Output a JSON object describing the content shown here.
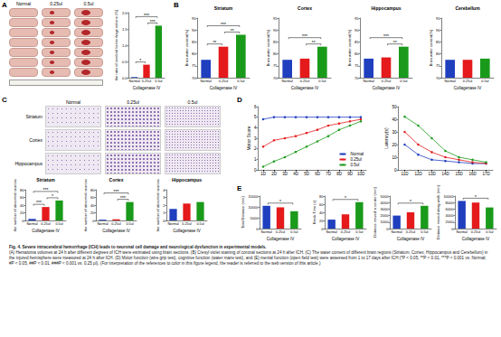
{
  "figure": {
    "panel_labels": [
      "A",
      "B",
      "C",
      "D",
      "E"
    ],
    "panel_A_photo": {
      "columns": [
        "Normal",
        "0.25ul",
        "0.5ul"
      ]
    },
    "panel_C_photo": {
      "columns": [
        "Normal",
        "0.25ul",
        "0.5ul"
      ],
      "rows": [
        "Striatum",
        "Cortex",
        "Hippocampus"
      ]
    },
    "caption": {
      "title": "Fig. 4. Severe intracerebral hemorrhage (ICH) leads to neuronal cell damage and neurological dysfunction in experimental models.",
      "text": "(A) Hematoma volumes at 24 h after different degrees of ICH were estimated using brain sections. (B) Cresyl violet staining of coronal sections at 24 h after ICH. (C) The water content of different brain regions (Striatum, Cortex, Hippocampus and Cerebellum) in the injured hemisphere were measured at 24 h after ICH. (D) Motor function (wire grip test), cognitive function (water maze test), and (E) mental function (open field test) were assessed from 1 to 17 days after ICH (*P < 0.05, **P < 0.01, ***P < 0.001 vs. Normal; #P < 0.05, ##P < 0.01, ###P < 0.001 vs. 0.25 μl). (For interpretation of the references to color in this figure legend, the reader is referred to the web version of this article.)"
    }
  },
  "chart_data": [
    {
      "type": "bar",
      "categories": [
        "Normal",
        "0.25ul",
        "0.5ul"
      ],
      "values": [
        0.02,
        0.4,
        1.6
      ],
      "colors": [
        "#1f3fbf",
        "#e41a1c",
        "#1a9a1a"
      ],
      "xlabel": "Collagenase IV",
      "ylabel": "the ratio of cerebral hemorrhage volume (%)",
      "ylim": [
        0,
        2
      ],
      "yticks": [
        {
          "value": 0,
          "label": "0.0"
        },
        {
          "value": 0.5,
          "label": "0.5"
        },
        {
          "value": 1,
          "label": "1.0"
        },
        {
          "value": 1.5,
          "label": "1.5"
        },
        {
          "value": 2,
          "label": "2.0"
        }
      ],
      "annotations": [
        {
          "text": "*",
          "from": "Normal",
          "to": "0.25ul"
        },
        {
          "text": "***",
          "from": "0.25ul",
          "to": "0.5ul"
        },
        {
          "text": "***",
          "from": "Normal",
          "to": "0.5ul"
        }
      ]
    },
    {
      "type": "bar",
      "title": "Striatum",
      "categories": [
        "Normal",
        "0.25ul",
        "0.5ul"
      ],
      "values": [
        77.5,
        83,
        88
      ],
      "colors": [
        "#1f3fbf",
        "#e41a1c",
        "#1a9a1a"
      ],
      "xlabel": "Collagenase IV",
      "ylabel": "Brain water content(%)",
      "ylim": [
        70,
        95
      ],
      "yticks": [
        70,
        75,
        80,
        85,
        90,
        95
      ],
      "annotations": [
        {
          "text": "**",
          "from": "Normal",
          "to": "0.25ul"
        },
        {
          "text": "**",
          "from": "0.25ul",
          "to": "0.5ul"
        },
        {
          "text": "***",
          "from": "Normal",
          "to": "0.5ul"
        }
      ]
    },
    {
      "type": "bar",
      "title": "Cortex",
      "categories": [
        "Normal",
        "0.25ul",
        "0.5ul"
      ],
      "values": [
        77.5,
        78,
        83
      ],
      "colors": [
        "#1f3fbf",
        "#e41a1c",
        "#1a9a1a"
      ],
      "xlabel": "Collagenase IV",
      "ylabel": "Brain water content(%)",
      "ylim": [
        70,
        95
      ],
      "yticks": [
        70,
        75,
        80,
        85,
        90,
        95
      ],
      "annotations": [
        {
          "text": "**",
          "from": "0.25ul",
          "to": "0.5ul"
        },
        {
          "text": "***",
          "from": "Normal",
          "to": "0.5ul"
        }
      ]
    },
    {
      "type": "bar",
      "title": "Hippocampus",
      "categories": [
        "Normal",
        "0.25ul",
        "0.5ul"
      ],
      "values": [
        78,
        78.5,
        83
      ],
      "colors": [
        "#1f3fbf",
        "#e41a1c",
        "#1a9a1a"
      ],
      "xlabel": "Collagenase IV",
      "ylabel": "Brain water content(%)",
      "ylim": [
        70,
        95
      ],
      "yticks": [
        70,
        75,
        80,
        85,
        90,
        95
      ],
      "annotations": [
        {
          "text": "**",
          "from": "0.25ul",
          "to": "0.5ul"
        },
        {
          "text": "***",
          "from": "Normal",
          "to": "0.5ul"
        }
      ]
    },
    {
      "type": "bar",
      "title": "Cerebellum",
      "categories": [
        "Normal",
        "0.25ul",
        "0.5ul"
      ],
      "values": [
        77.5,
        77.5,
        78
      ],
      "colors": [
        "#1f3fbf",
        "#e41a1c",
        "#1a9a1a"
      ],
      "xlabel": "Collagenase IV",
      "ylabel": "Brain water content(%)",
      "ylim": [
        70,
        95
      ],
      "yticks": [
        70,
        75,
        80,
        85,
        90,
        95
      ]
    },
    {
      "type": "bar",
      "title": "Striatum",
      "categories": [
        "Normal",
        "0.25ul",
        "0.5ul"
      ],
      "values": [
        4,
        35,
        52
      ],
      "colors": [
        "#1f3fbf",
        "#e41a1c",
        "#1a9a1a"
      ],
      "xlabel": "Collagenase IV",
      "ylabel": "the number of abnormal neurons",
      "ylim": [
        0,
        80
      ],
      "yticks": [
        0,
        20,
        40,
        60,
        80
      ],
      "annotations": [
        {
          "text": "***",
          "from": "Normal",
          "to": "0.25ul"
        },
        {
          "text": "*",
          "from": "0.25ul",
          "to": "0.5ul"
        },
        {
          "text": "***",
          "from": "Normal",
          "to": "0.5ul"
        }
      ]
    },
    {
      "type": "bar",
      "title": "Cortex",
      "categories": [
        "Normal",
        "0.25ul",
        "0.5ul"
      ],
      "values": [
        2,
        3,
        48
      ],
      "colors": [
        "#1f3fbf",
        "#e41a1c",
        "#1a9a1a"
      ],
      "xlabel": "Collagenase IV",
      "ylabel": "the number of abnormal neurons",
      "ylim": [
        0,
        80
      ],
      "yticks": [
        0,
        20,
        40,
        60,
        80
      ],
      "annotations": [
        {
          "text": "***",
          "from": "0.25ul",
          "to": "0.5ul"
        },
        {
          "text": "***",
          "from": "Normal",
          "to": "0.5ul"
        }
      ]
    },
    {
      "type": "bar",
      "title": "Hippocampus",
      "categories": [
        "Normal",
        "0.25ul",
        "0.5ul"
      ],
      "values": [
        1.5,
        2.2,
        2.4
      ],
      "colors": [
        "#1f3fbf",
        "#e41a1c",
        "#1a9a1a"
      ],
      "xlabel": "Collagenase IV",
      "ylabel": "the number of abnormal neurons",
      "ylim": [
        0,
        4
      ],
      "yticks": [
        0,
        1,
        2,
        3,
        4
      ]
    },
    {
      "type": "line",
      "categories": [
        "1D",
        "2D",
        "3D",
        "4D",
        "5D",
        "6D",
        "7D",
        "8D",
        "9D",
        "10D"
      ],
      "ylabel": "Motor Score",
      "ylim": [
        0,
        6
      ],
      "yticks": [
        0,
        1,
        2,
        3,
        4,
        5,
        6
      ],
      "legend": "lower right",
      "marker": "circle",
      "series": [
        {
          "name": "Normal",
          "color": "#1f3fbf",
          "values": [
            4.8,
            5,
            5,
            5,
            5,
            5,
            5,
            5,
            5,
            5
          ]
        },
        {
          "name": "0.25ul",
          "color": "#e41a1c",
          "values": [
            2.2,
            2.8,
            3,
            3.2,
            3.5,
            3.8,
            4.2,
            4.4,
            4.6,
            4.8
          ]
        },
        {
          "name": "0.5ul",
          "color": "#1a9a1a",
          "values": [
            0.3,
            0.8,
            1.2,
            1.7,
            2.2,
            2.7,
            3.2,
            3.8,
            4.2,
            4.6
          ]
        }
      ]
    },
    {
      "type": "line",
      "categories": [
        "11D",
        "12D",
        "13D",
        "14D",
        "15D",
        "16D",
        "17D"
      ],
      "ylabel": "Latency(s)",
      "ylim": [
        0,
        50
      ],
      "yticks": [
        0,
        10,
        20,
        30,
        40,
        50
      ],
      "marker": "circle",
      "series": [
        {
          "name": "Normal",
          "color": "#1f3fbf",
          "values": [
            20,
            12,
            8,
            7,
            6,
            5,
            5
          ]
        },
        {
          "name": "0.25ul",
          "color": "#e41a1c",
          "values": [
            30,
            20,
            14,
            10,
            8,
            6,
            5
          ]
        },
        {
          "name": "0.5ul",
          "color": "#1a9a1a",
          "values": [
            42,
            35,
            25,
            15,
            10,
            8,
            6
          ]
        }
      ]
    },
    {
      "type": "bar",
      "categories": [
        "Normal",
        "0.25ul",
        "0.5ul"
      ],
      "values": [
        10500,
        9800,
        8000
      ],
      "colors": [
        "#1f3fbf",
        "#e41a1c",
        "#1a9a1a"
      ],
      "xlabel": "Collagenase IV",
      "ylabel": "Total Distance (mm)",
      "ylim": [
        0,
        15000
      ],
      "yticks": [
        0,
        5000,
        10000,
        15000
      ],
      "annotations": [
        {
          "text": "*",
          "from": "Normal",
          "to": "0.5ul"
        }
      ]
    },
    {
      "type": "bar",
      "categories": [
        "Normal",
        "0.25ul",
        "0.5ul"
      ],
      "values": [
        22,
        35,
        65
      ],
      "colors": [
        "#1f3fbf",
        "#e41a1c",
        "#1a9a1a"
      ],
      "xlabel": "Collagenase IV",
      "ylabel": "Break Time (s)",
      "ylim": [
        0,
        80
      ],
      "yticks": [
        0,
        20,
        40,
        60,
        80
      ],
      "annotations": [
        {
          "text": "*",
          "from": "Normal",
          "to": "0.5ul"
        }
      ]
    },
    {
      "type": "bar",
      "categories": [
        "Normal",
        "0.25ul",
        "0.5ul"
      ],
      "values": [
        2000,
        2500,
        3500
      ],
      "colors": [
        "#1f3fbf",
        "#e41a1c",
        "#1a9a1a"
      ],
      "xlabel": "Collagenase IV",
      "ylabel": "Distance moved in centre (mm)",
      "ylim": [
        0,
        5000
      ],
      "yticks": [
        0,
        1000,
        2000,
        3000,
        4000,
        5000
      ],
      "annotations": [
        {
          "text": "*",
          "from": "Normal",
          "to": "0.5ul"
        }
      ]
    },
    {
      "type": "bar",
      "categories": [
        "Normal",
        "0.25ul",
        "0.5ul"
      ],
      "values": [
        8500,
        8000,
        6500
      ],
      "colors": [
        "#1f3fbf",
        "#e41a1c",
        "#1a9a1a"
      ],
      "xlabel": "Collagenase IV",
      "ylabel": "Distance moved along walls (mm)",
      "ylim": [
        0,
        10000
      ],
      "yticks": [
        0,
        2000,
        4000,
        6000,
        8000,
        10000
      ],
      "annotations": [
        {
          "text": "*",
          "from": "Normal",
          "to": "0.5ul"
        }
      ]
    }
  ]
}
